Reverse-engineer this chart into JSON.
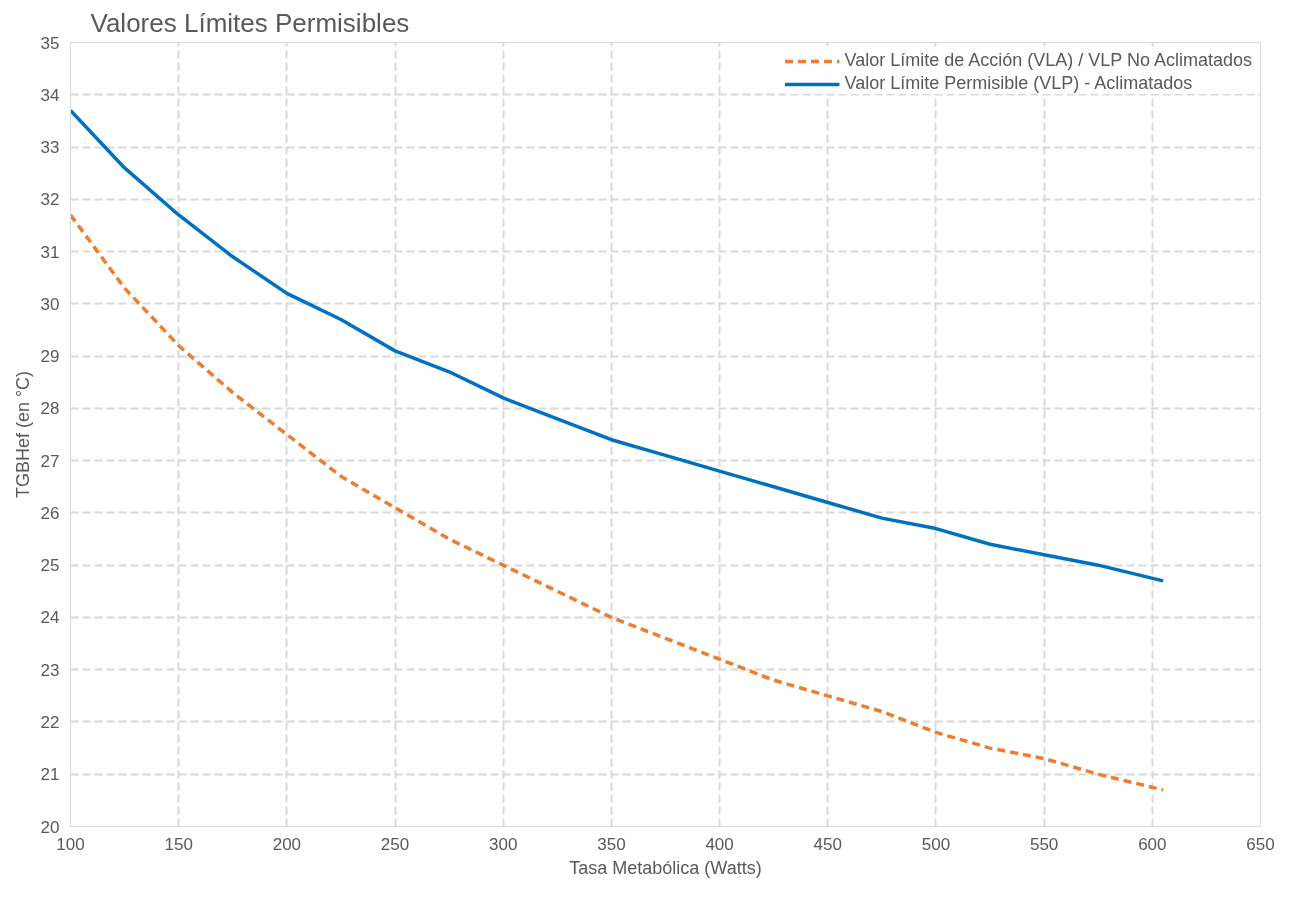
{
  "chart_data": {
    "type": "line",
    "title": "Valores Límites Permisibles",
    "xlabel": "Tasa Metabólica (Watts)",
    "ylabel": "TGBHef (en °C)",
    "x": [
      100,
      125,
      150,
      175,
      200,
      225,
      250,
      275,
      300,
      325,
      350,
      375,
      400,
      425,
      450,
      475,
      500,
      525,
      550,
      575,
      605
    ],
    "series": [
      {
        "name": "Valor Límite de Acción (VLA) / VLP No Aclimatados",
        "color": "#ed7d31",
        "line_style": "dashed",
        "values": [
          31.7,
          30.3,
          29.2,
          28.3,
          27.5,
          26.7,
          26.1,
          25.5,
          25.0,
          24.5,
          24.0,
          23.6,
          23.2,
          22.8,
          22.5,
          22.2,
          21.8,
          21.5,
          21.3,
          21.0,
          20.7
        ]
      },
      {
        "name": "Valor Límite Permisible (VLP) - Aclimatados",
        "color": "#0070c0",
        "line_style": "solid",
        "values": [
          33.7,
          32.6,
          31.7,
          30.9,
          30.2,
          29.7,
          29.1,
          28.7,
          28.2,
          27.8,
          27.4,
          27.1,
          26.8,
          26.5,
          26.2,
          25.9,
          25.7,
          25.4,
          25.2,
          25.0,
          24.7
        ]
      }
    ],
    "xlim": [
      100,
      650
    ],
    "xticks": [
      100,
      150,
      200,
      250,
      300,
      350,
      400,
      450,
      500,
      550,
      600,
      650
    ],
    "ylim": [
      20,
      35
    ],
    "yticks": [
      20,
      21,
      22,
      23,
      24,
      25,
      26,
      27,
      28,
      29,
      30,
      31,
      32,
      33,
      34,
      35
    ],
    "grid": true,
    "legend": "top right",
    "marker": "none"
  }
}
